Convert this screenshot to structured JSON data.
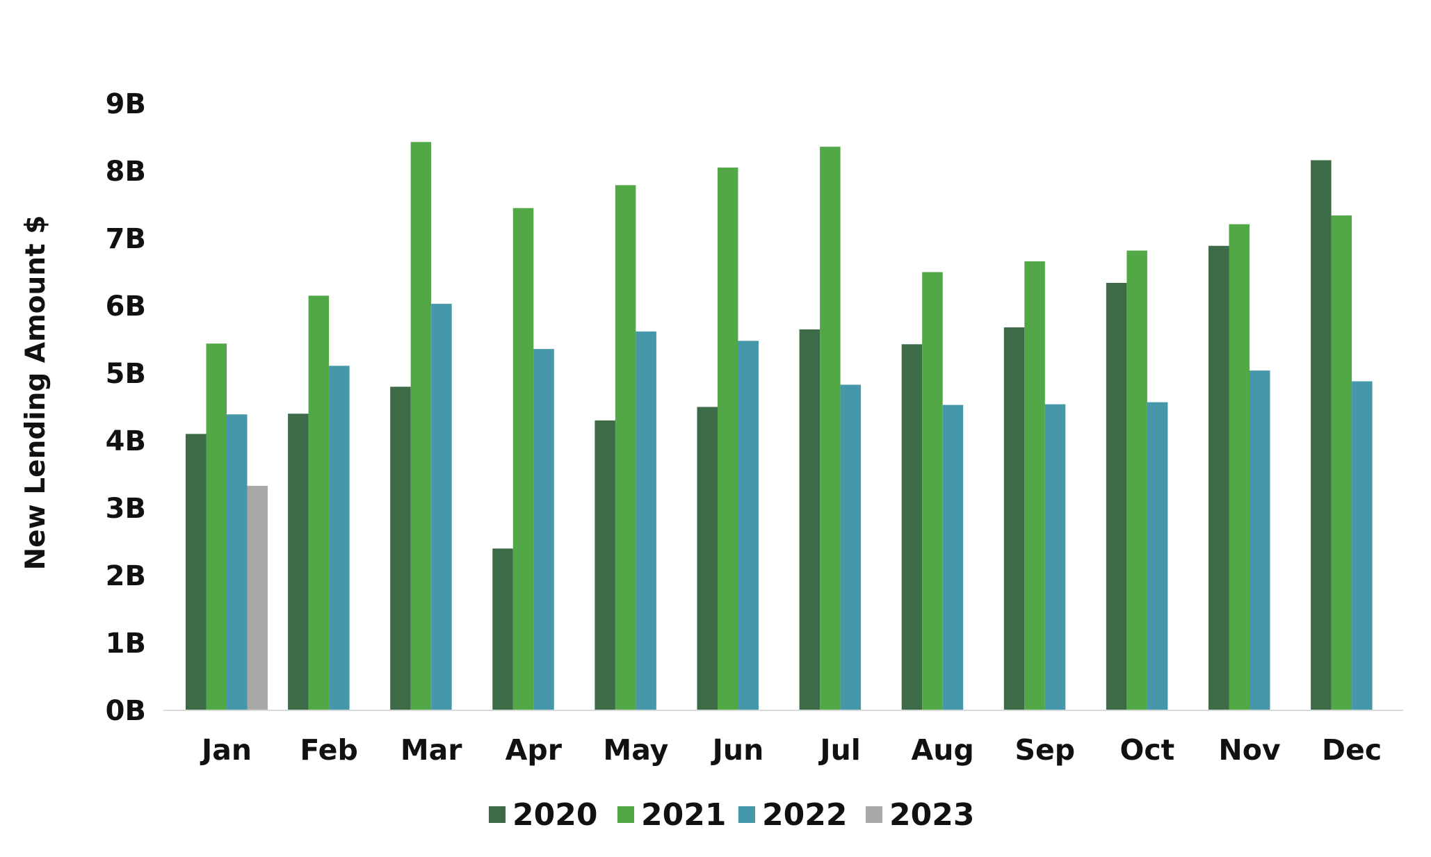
{
  "chart_data": {
    "type": "bar",
    "title": "",
    "xlabel": "",
    "ylabel": "New Lending Amount $",
    "ylim": [
      0,
      9
    ],
    "yticks": [
      "0B",
      "1B",
      "2B",
      "3B",
      "4B",
      "5B",
      "6B",
      "7B",
      "8B",
      "9B"
    ],
    "grid": false,
    "legend_position": "bottom",
    "categories": [
      "Jan",
      "Feb",
      "Mar",
      "Apr",
      "May",
      "Jun",
      "Jul",
      "Aug",
      "Sep",
      "Oct",
      "Nov",
      "Dec"
    ],
    "series": [
      {
        "name": "2020",
        "color": "#3d6b47",
        "values": [
          4.1,
          4.4,
          4.8,
          2.4,
          4.3,
          4.5,
          5.65,
          5.43,
          5.68,
          6.34,
          6.89,
          8.16
        ]
      },
      {
        "name": "2021",
        "color": "#52a846",
        "values": [
          5.44,
          6.15,
          8.43,
          7.45,
          7.79,
          8.05,
          8.36,
          6.5,
          6.66,
          6.82,
          7.21,
          7.34
        ]
      },
      {
        "name": "2022",
        "color": "#4797ab",
        "values": [
          4.39,
          5.11,
          6.03,
          5.36,
          5.62,
          5.48,
          4.83,
          4.53,
          4.54,
          4.57,
          5.04,
          4.88
        ]
      },
      {
        "name": "2023",
        "color": "#a8a8a8",
        "values": [
          3.33,
          null,
          null,
          null,
          null,
          null,
          null,
          null,
          null,
          null,
          null,
          null
        ]
      }
    ]
  }
}
